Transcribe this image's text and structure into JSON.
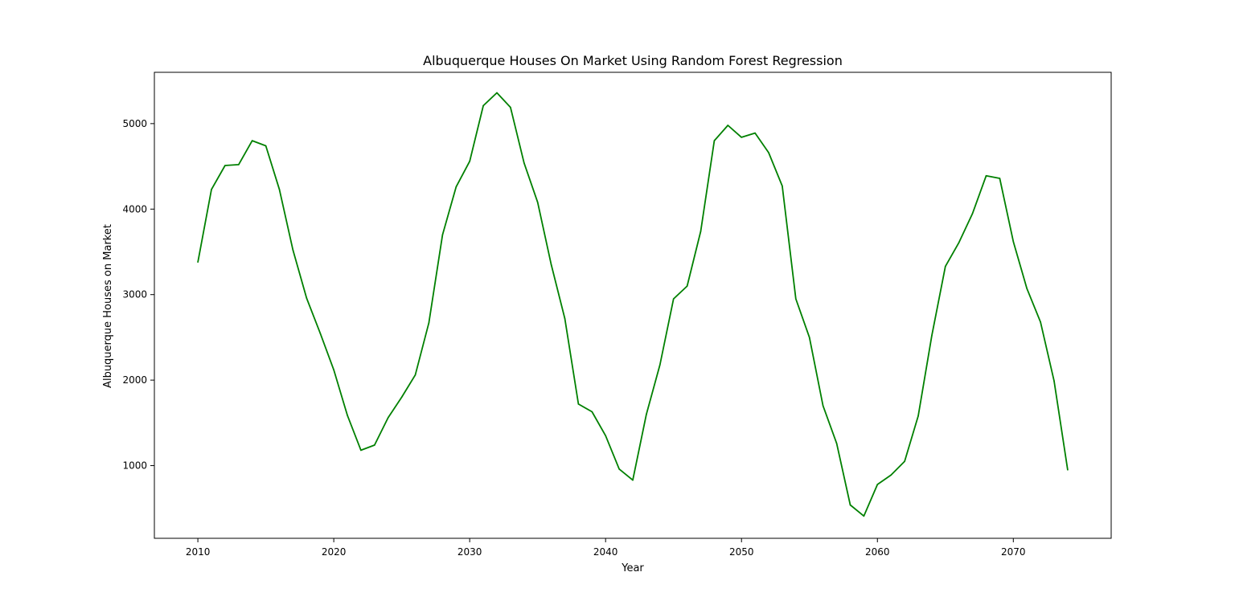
{
  "chart_data": {
    "type": "line",
    "title": "Albuquerque Houses On Market Using Random Forest Regression",
    "xlabel": "Year",
    "ylabel": "Albuquerque Houses on Market",
    "xlim": [
      2006.8,
      2077.2
    ],
    "ylim": [
      150,
      5600
    ],
    "xticks": [
      2010,
      2020,
      2030,
      2040,
      2050,
      2060,
      2070
    ],
    "yticks": [
      1000,
      2000,
      3000,
      4000,
      5000
    ],
    "grid": false,
    "legend": "none",
    "line_color": "#008000",
    "series": [
      {
        "x": [
          2010,
          2011,
          2012,
          2013,
          2014,
          2015,
          2016,
          2017,
          2018,
          2019,
          2020,
          2021,
          2022,
          2023,
          2024,
          2025,
          2026,
          2027,
          2028,
          2029,
          2030,
          2031,
          2032,
          2033,
          2034,
          2035,
          2036,
          2037,
          2038,
          2039,
          2040,
          2041,
          2042,
          2043,
          2044,
          2045,
          2046,
          2047,
          2048,
          2049,
          2050,
          2051,
          2052,
          2053,
          2054,
          2055,
          2056,
          2057,
          2058,
          2059,
          2060,
          2061,
          2062,
          2063,
          2064,
          2065,
          2066,
          2067,
          2068,
          2069,
          2070,
          2071,
          2072,
          2073,
          2074
        ],
        "values": [
          3380,
          4230,
          4510,
          4520,
          4800,
          4740,
          4230,
          3520,
          2960,
          2550,
          2120,
          1590,
          1180,
          1240,
          1560,
          1800,
          2060,
          2670,
          3700,
          4260,
          4560,
          5210,
          5360,
          5190,
          4540,
          4080,
          3350,
          2720,
          1720,
          1630,
          1350,
          960,
          830,
          1600,
          2180,
          2950,
          3100,
          3740,
          4800,
          4980,
          4840,
          4890,
          4660,
          4270,
          2950,
          2500,
          1700,
          1260,
          540,
          410,
          780,
          890,
          1050,
          1580,
          2520,
          3330,
          3610,
          3950,
          4390,
          4360,
          3620,
          3070,
          2680,
          1990,
          950
        ]
      }
    ]
  }
}
